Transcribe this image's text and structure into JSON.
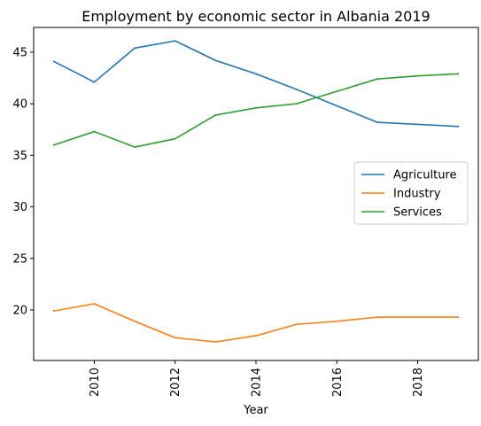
{
  "chart_data": {
    "type": "line",
    "title": "Employment by economic sector in Albania 2019",
    "xlabel": "Year",
    "ylabel": "",
    "x": [
      2009,
      2010,
      2011,
      2012,
      2013,
      2014,
      2015,
      2016,
      2017,
      2018,
      2019
    ],
    "xlim": [
      2008.5,
      2019.5
    ],
    "ylim": [
      15.1,
      47.4
    ],
    "x_ticks": [
      2010,
      2012,
      2014,
      2016,
      2018
    ],
    "y_ticks": [
      20,
      25,
      30,
      35,
      40,
      45
    ],
    "grid": false,
    "legend_position": "center-right",
    "series": [
      {
        "name": "Agriculture",
        "color": "#1f77b4",
        "values": [
          44.1,
          42.1,
          45.4,
          46.1,
          44.2,
          42.9,
          41.4,
          39.8,
          38.2,
          38.0,
          37.8
        ]
      },
      {
        "name": "Industry",
        "color": "#ff7f0e",
        "values": [
          19.9,
          20.6,
          18.9,
          17.3,
          16.9,
          17.5,
          18.6,
          18.9,
          19.3,
          19.3,
          19.3
        ]
      },
      {
        "name": "Services",
        "color": "#2ca02c",
        "values": [
          36.0,
          37.3,
          35.8,
          36.6,
          38.9,
          39.6,
          40.0,
          41.2,
          42.4,
          42.7,
          42.9
        ]
      }
    ]
  }
}
